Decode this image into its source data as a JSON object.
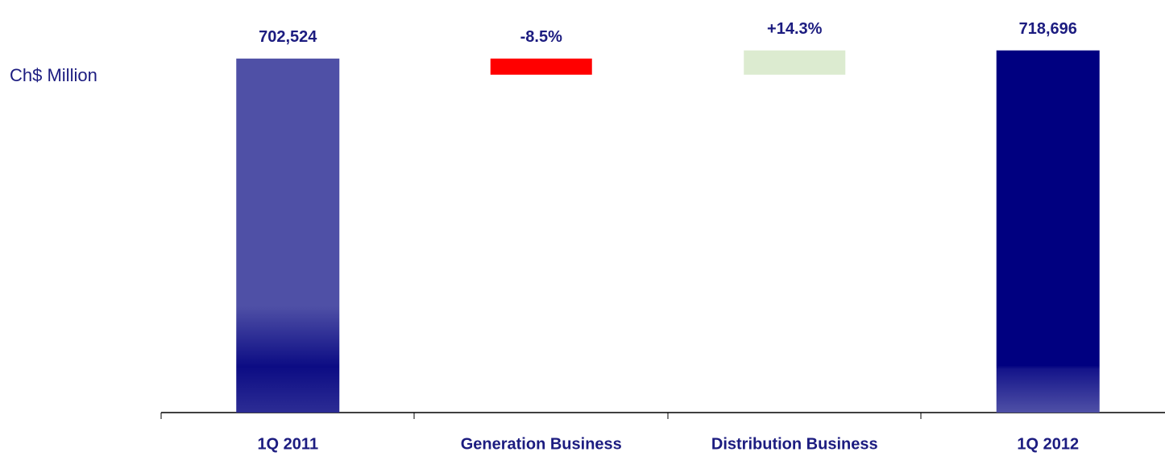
{
  "chart_data": {
    "type": "waterfall",
    "ylabel": "Ch$ Million",
    "categories": [
      "1Q 2011",
      "Generation Business",
      "Distribution Business",
      "1Q 2012"
    ],
    "values": [
      702524,
      -32000,
      48172,
      718696
    ],
    "kinds": [
      "total",
      "delta",
      "delta",
      "total"
    ],
    "value_labels": [
      "702,524",
      null,
      null,
      "718,696"
    ],
    "change_labels": [
      null,
      "-8.5%",
      "+14.3%",
      null
    ],
    "colors": [
      "#4f50a6",
      "#ff0000",
      "#dcebd0",
      "#000080"
    ],
    "ylim": [
      0,
      790000
    ]
  }
}
